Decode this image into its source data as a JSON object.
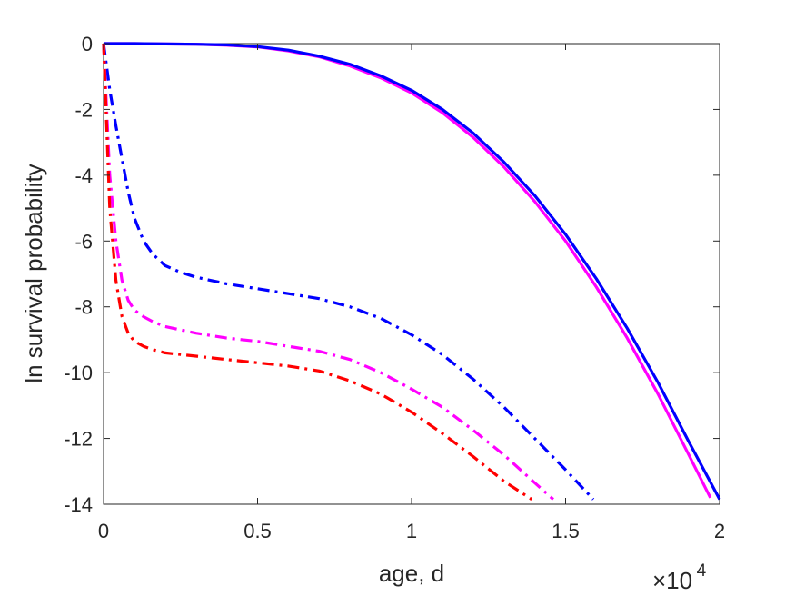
{
  "chart_data": {
    "type": "line",
    "xlabel": "age, d",
    "ylabel": "ln survival probability",
    "x_exponent_base": "×10",
    "x_exponent_power": "4",
    "xlim": [
      0,
      20000
    ],
    "ylim": [
      -14,
      0
    ],
    "x_ticks": [
      0,
      5000,
      10000,
      15000,
      20000
    ],
    "x_tick_labels": [
      "0",
      "0.5",
      "1",
      "1.5",
      "2"
    ],
    "y_ticks": [
      0,
      -2,
      -4,
      -6,
      -8,
      -10,
      -12,
      -14
    ],
    "y_tick_labels": [
      "0",
      "-2",
      "-4",
      "-6",
      "-8",
      "-10",
      "-12",
      "-14"
    ],
    "grid": false,
    "series": [
      {
        "color": "#ff00ff",
        "style": "solid",
        "x": [
          0,
          1000,
          2000,
          3000,
          4000,
          5000,
          6000,
          7000,
          8000,
          9000,
          10000,
          11000,
          12000,
          13000,
          14000,
          15000,
          16000,
          17000,
          18000,
          19000,
          19700
        ],
        "y": [
          0,
          0,
          -0.01,
          -0.02,
          -0.05,
          -0.1,
          -0.22,
          -0.4,
          -0.68,
          -1.04,
          -1.5,
          -2.1,
          -2.85,
          -3.75,
          -4.8,
          -6.0,
          -7.4,
          -8.95,
          -10.65,
          -12.5,
          -13.8
        ]
      },
      {
        "color": "#0000ff",
        "style": "solid",
        "x": [
          0,
          1000,
          2000,
          3000,
          4000,
          5000,
          6000,
          7000,
          8000,
          9000,
          10000,
          11000,
          12000,
          13000,
          14000,
          15000,
          16000,
          17000,
          18000,
          19000,
          20000
        ],
        "y": [
          0,
          0,
          -0.01,
          -0.02,
          -0.04,
          -0.09,
          -0.2,
          -0.38,
          -0.63,
          -0.98,
          -1.42,
          -2.0,
          -2.72,
          -3.6,
          -4.62,
          -5.8,
          -7.15,
          -8.65,
          -10.3,
          -12.1,
          -13.85
        ]
      },
      {
        "color": "#0000ff",
        "style": "dash-dot",
        "x": [
          0,
          200,
          400,
          600,
          800,
          1000,
          1300,
          1600,
          2000,
          2500,
          3000,
          4000,
          5000,
          6000,
          7000,
          8000,
          9000,
          10000,
          11000,
          12000,
          13000,
          14000,
          15000,
          15900
        ],
        "y": [
          0,
          -1.4,
          -2.5,
          -3.5,
          -4.5,
          -5.3,
          -6.0,
          -6.4,
          -6.75,
          -6.95,
          -7.1,
          -7.3,
          -7.45,
          -7.6,
          -7.75,
          -8.0,
          -8.35,
          -8.85,
          -9.45,
          -10.2,
          -11.05,
          -12.0,
          -12.95,
          -13.85
        ]
      },
      {
        "color": "#ff00ff",
        "style": "dash-dot",
        "x": [
          0,
          200,
          400,
          600,
          800,
          1000,
          1300,
          1600,
          2000,
          2500,
          3000,
          4000,
          5000,
          6000,
          7000,
          8000,
          9000,
          10000,
          11000,
          12000,
          13000,
          14000,
          14600
        ],
        "y": [
          0,
          -4.0,
          -6.0,
          -7.2,
          -7.8,
          -8.1,
          -8.3,
          -8.45,
          -8.6,
          -8.7,
          -8.8,
          -8.95,
          -9.05,
          -9.2,
          -9.35,
          -9.6,
          -10.0,
          -10.5,
          -11.05,
          -11.75,
          -12.5,
          -13.35,
          -13.85
        ]
      },
      {
        "color": "#ff0000",
        "style": "dash-dot",
        "x": [
          0,
          200,
          400,
          600,
          800,
          1000,
          1300,
          1600,
          2000,
          2500,
          3000,
          4000,
          5000,
          6000,
          7000,
          8000,
          9000,
          10000,
          11000,
          12000,
          13000,
          13900
        ],
        "y": [
          0,
          -5.0,
          -7.2,
          -8.3,
          -8.8,
          -9.05,
          -9.2,
          -9.3,
          -9.4,
          -9.45,
          -9.5,
          -9.6,
          -9.7,
          -9.8,
          -9.95,
          -10.25,
          -10.65,
          -11.2,
          -11.85,
          -12.55,
          -13.3,
          -13.85
        ]
      }
    ]
  }
}
